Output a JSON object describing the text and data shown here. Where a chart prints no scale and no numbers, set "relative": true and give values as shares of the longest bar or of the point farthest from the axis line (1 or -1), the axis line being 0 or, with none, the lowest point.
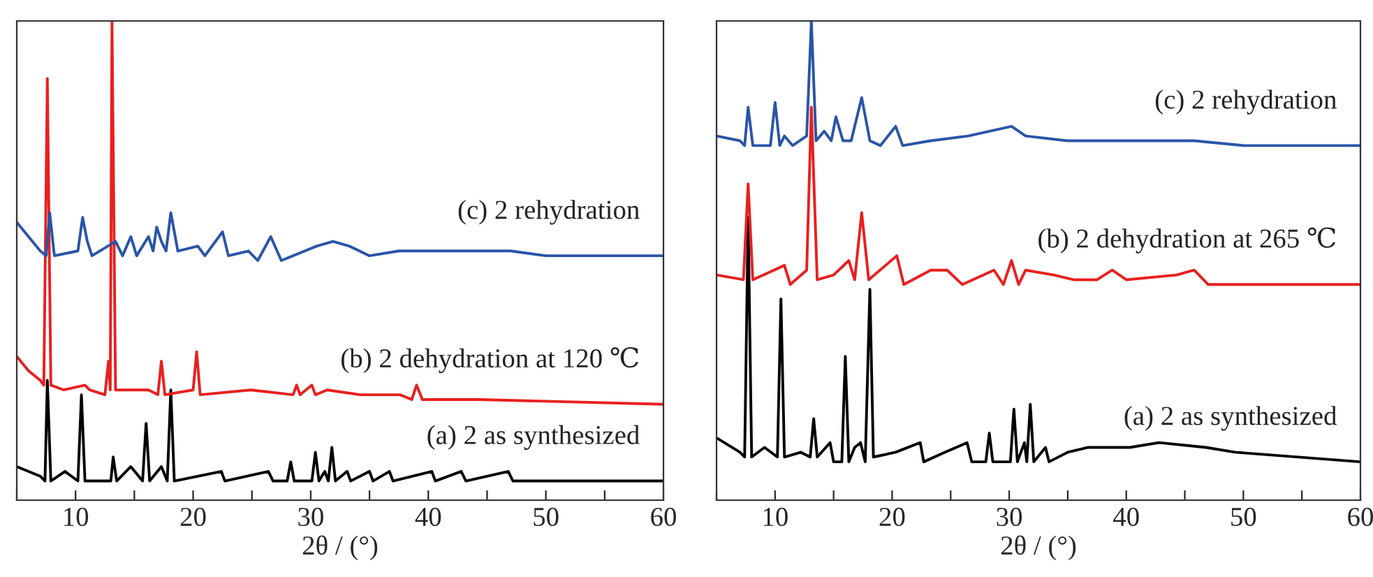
{
  "chart_data": [
    {
      "type": "line",
      "relative": true,
      "xlabel": "2θ / (°)",
      "xlim": [
        5,
        60
      ],
      "xticks": [
        {
          "value": 5,
          "label": null
        },
        10,
        {
          "value": 15,
          "label": null
        },
        20,
        {
          "value": 25,
          "label": null
        },
        30,
        {
          "value": 35,
          "label": null
        },
        40,
        {
          "value": 45,
          "label": null
        },
        50,
        {
          "value": 55,
          "label": null
        },
        60
      ],
      "grid": false,
      "legend": false,
      "series": [
        {
          "name": "(a) 2 as synthesized",
          "color": "#000000",
          "x": [
            5,
            7,
            7.4,
            7.6,
            7.9,
            9.1,
            10.2,
            10.5,
            10.8,
            13.0,
            13.2,
            13.5,
            14.7,
            15.7,
            16.0,
            16.3,
            17.3,
            17.8,
            18.1,
            18.4,
            22.4,
            22.7,
            26.4,
            26.8,
            28.0,
            28.3,
            28.6,
            30.1,
            30.4,
            30.7,
            31.2,
            31.5,
            31.8,
            32.1,
            33.1,
            33.4,
            35,
            35.3,
            36.7,
            37,
            40.3,
            40.6,
            42.8,
            43.2,
            46.8,
            47.2,
            60
          ],
          "values": [
            0.07,
            0.05,
            0.04,
            0.25,
            0.04,
            0.06,
            0.04,
            0.22,
            0.04,
            0.04,
            0.09,
            0.04,
            0.07,
            0.04,
            0.16,
            0.04,
            0.07,
            0.04,
            0.23,
            0.04,
            0.06,
            0.04,
            0.06,
            0.04,
            0.04,
            0.08,
            0.04,
            0.04,
            0.1,
            0.04,
            0.06,
            0.04,
            0.11,
            0.04,
            0.06,
            0.04,
            0.06,
            0.04,
            0.06,
            0.04,
            0.06,
            0.04,
            0.06,
            0.04,
            0.06,
            0.04,
            0.04
          ]
        },
        {
          "name": "(b) 2 dehydration at 120 ℃",
          "color": "#e8201f",
          "x": [
            5,
            6,
            7,
            7.3,
            7.6,
            7.9,
            9,
            10.8,
            11.2,
            12.5,
            12.8,
            12.95,
            13.1,
            13.4,
            16.2,
            17.0,
            17.3,
            17.6,
            20.0,
            20.3,
            20.6,
            24.9,
            28.5,
            28.8,
            29.1,
            30.1,
            30.4,
            31.4,
            34.2,
            37.6,
            38.6,
            39.0,
            39.5,
            44.4,
            60
          ],
          "values": [
            0.3,
            0.27,
            0.25,
            0.24,
            0.88,
            0.24,
            0.23,
            0.24,
            0.23,
            0.22,
            0.29,
            0.23,
            1.0,
            0.23,
            0.23,
            0.22,
            0.29,
            0.22,
            0.23,
            0.31,
            0.22,
            0.23,
            0.22,
            0.24,
            0.22,
            0.24,
            0.22,
            0.23,
            0.22,
            0.22,
            0.21,
            0.24,
            0.21,
            0.21,
            0.2
          ]
        },
        {
          "name": "(c) 2 rehydration",
          "color": "#2a54a8",
          "x": [
            5,
            6,
            7,
            7.5,
            7.8,
            8.2,
            10.2,
            10.6,
            11.0,
            11.4,
            13.4,
            14.0,
            14.7,
            15.2,
            16.2,
            16.6,
            16.9,
            17.3,
            17.7,
            18.1,
            18.7,
            20.4,
            21,
            22.5,
            23,
            24.7,
            25.5,
            26.6,
            27.5,
            30.5,
            31.9,
            33.3,
            35,
            37.5,
            40,
            47,
            50,
            60
          ],
          "values": [
            0.58,
            0.55,
            0.52,
            0.51,
            0.6,
            0.51,
            0.52,
            0.59,
            0.54,
            0.51,
            0.54,
            0.51,
            0.55,
            0.51,
            0.55,
            0.52,
            0.57,
            0.54,
            0.52,
            0.6,
            0.52,
            0.53,
            0.51,
            0.56,
            0.51,
            0.52,
            0.5,
            0.55,
            0.5,
            0.53,
            0.54,
            0.53,
            0.51,
            0.52,
            0.52,
            0.52,
            0.51,
            0.51
          ]
        }
      ]
    },
    {
      "type": "line",
      "relative": true,
      "xlabel": "2θ / (°)",
      "xlim": [
        5,
        60
      ],
      "xticks": [
        {
          "value": 5,
          "label": null
        },
        10,
        {
          "value": 15,
          "label": null
        },
        20,
        {
          "value": 25,
          "label": null
        },
        30,
        {
          "value": 35,
          "label": null
        },
        40,
        {
          "value": 45,
          "label": null
        },
        50,
        {
          "value": 55,
          "label": null
        },
        60
      ],
      "grid": false,
      "legend": false,
      "series": [
        {
          "name": "(a) 2 as synthesized",
          "color": "#000000",
          "x": [
            5,
            7,
            7.4,
            7.7,
            8,
            9.1,
            10.2,
            10.5,
            10.8,
            12.2,
            13.0,
            13.3,
            13.6,
            14.7,
            15.0,
            15.7,
            16.0,
            16.3,
            16.8,
            17.3,
            17.7,
            18.1,
            18.4,
            20.3,
            22.4,
            22.7,
            24.5,
            26.4,
            26.8,
            28.0,
            28.3,
            28.6,
            30.1,
            30.4,
            30.7,
            31.3,
            31.5,
            31.8,
            32.1,
            33.1,
            33.4,
            35,
            36.7,
            40.3,
            42.8,
            46.8,
            49.3,
            60
          ],
          "values": [
            0.13,
            0.1,
            0.09,
            0.59,
            0.09,
            0.11,
            0.09,
            0.42,
            0.09,
            0.1,
            0.09,
            0.17,
            0.09,
            0.12,
            0.08,
            0.08,
            0.3,
            0.08,
            0.11,
            0.12,
            0.08,
            0.44,
            0.09,
            0.1,
            0.12,
            0.08,
            0.1,
            0.12,
            0.08,
            0.08,
            0.14,
            0.08,
            0.08,
            0.19,
            0.08,
            0.12,
            0.08,
            0.2,
            0.08,
            0.11,
            0.08,
            0.1,
            0.11,
            0.11,
            0.12,
            0.11,
            0.1,
            0.08
          ]
        },
        {
          "name": "(b) 2 dehydration at 265 ℃",
          "color": "#e8201f",
          "x": [
            5,
            7.3,
            7.7,
            8.1,
            10.8,
            11.3,
            12.7,
            13.1,
            13.6,
            15,
            16.3,
            16.8,
            17.4,
            18,
            20.4,
            21,
            23.3,
            24.7,
            26,
            28.7,
            29.5,
            30.2,
            30.8,
            31.4,
            33.8,
            35.5,
            37.5,
            38.8,
            40,
            44.3,
            45.8,
            47,
            60
          ],
          "values": [
            0.47,
            0.46,
            0.66,
            0.46,
            0.49,
            0.45,
            0.48,
            0.82,
            0.46,
            0.47,
            0.5,
            0.46,
            0.6,
            0.46,
            0.51,
            0.45,
            0.48,
            0.48,
            0.45,
            0.48,
            0.45,
            0.5,
            0.45,
            0.48,
            0.47,
            0.46,
            0.46,
            0.48,
            0.46,
            0.47,
            0.48,
            0.45,
            0.45
          ]
        },
        {
          "name": "(c) 2 rehydration",
          "color": "#2a54a8",
          "x": [
            5,
            7,
            7.4,
            7.7,
            8.1,
            9.6,
            10.0,
            10.4,
            10.8,
            11.5,
            12.7,
            13.1,
            13.5,
            14.2,
            14.8,
            15.2,
            15.8,
            16.5,
            17.4,
            18.1,
            19,
            20.3,
            20.9,
            23.3,
            26.5,
            30.2,
            31.4,
            35,
            40,
            45.8,
            50,
            60
          ],
          "values": [
            0.76,
            0.75,
            0.74,
            0.82,
            0.74,
            0.74,
            0.83,
            0.74,
            0.76,
            0.74,
            0.76,
            1.0,
            0.75,
            0.77,
            0.75,
            0.8,
            0.75,
            0.75,
            0.84,
            0.75,
            0.74,
            0.78,
            0.74,
            0.75,
            0.76,
            0.78,
            0.76,
            0.75,
            0.75,
            0.75,
            0.74,
            0.74
          ]
        }
      ]
    }
  ]
}
